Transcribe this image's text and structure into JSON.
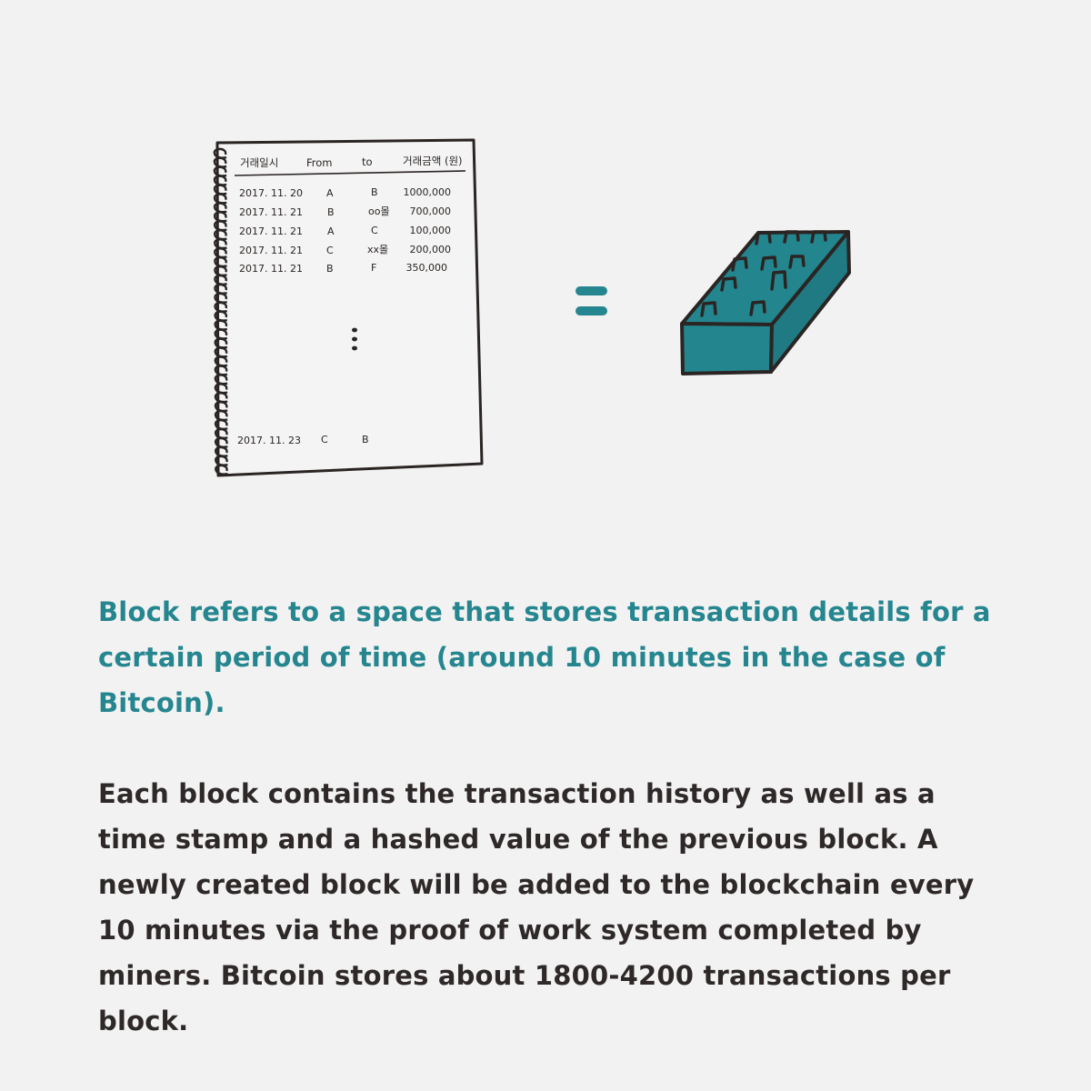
{
  "ledger": {
    "headers": {
      "datetime": "거래일시",
      "from": "From",
      "to": "to",
      "amount": "거래금액 (원)"
    },
    "rows": [
      {
        "date": "2017. 11. 20",
        "from": "A",
        "to": "B",
        "amount": "1000,000"
      },
      {
        "date": "2017. 11. 21",
        "from": "B",
        "to": "oo몰",
        "amount": "700,000"
      },
      {
        "date": "2017. 11. 21",
        "from": "A",
        "to": "C",
        "amount": "100,000"
      },
      {
        "date": "2017. 11. 21",
        "from": "C",
        "to": "xx몰",
        "amount": "200,000"
      },
      {
        "date": "2017. 11. 21",
        "from": "B",
        "to": "F",
        "amount": "350,000"
      }
    ],
    "last_row": {
      "date": "2017. 11. 23",
      "from": "C",
      "to": "B"
    }
  },
  "colors": {
    "accent": "#26868f",
    "block_top": "#23858e",
    "block_side": "#1f7a83",
    "ink": "#2a2523",
    "background": "#f2f2f2"
  },
  "icons": {
    "equals": "equals-sign-icon",
    "block": "block-brick-icon"
  },
  "caption": {
    "accent": "Block refers to a space that stores transaction details for a certain period of time (around 10 minutes in the case of Bitcoin).",
    "body": "Each block contains the transaction history as well as a time stamp and a hashed value of the previous block. A newly created block will be added to the blockchain every 10 minutes via the proof of work system completed by miners. Bitcoin stores about 1800-4200 transactions per block."
  }
}
